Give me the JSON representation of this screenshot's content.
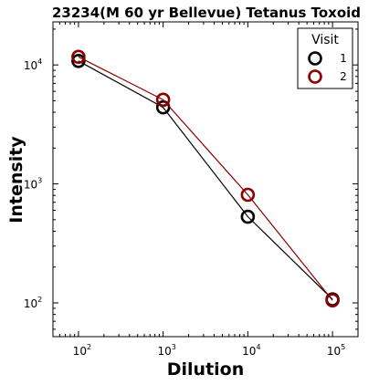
{
  "chart_data": {
    "type": "line",
    "title": "23234(M 60 yr Bellevue) Tetanus Toxoid",
    "xlabel": "Dilution",
    "ylabel": "Intensity",
    "xscale": "log",
    "yscale": "log",
    "xlim": [
      50,
      200000
    ],
    "ylim": [
      52,
      23000
    ],
    "x": [
      100,
      1000,
      10000,
      100000
    ],
    "x_ticks": [
      {
        "value": 100,
        "base": "10",
        "exp": "2"
      },
      {
        "value": 1000,
        "base": "10",
        "exp": "3"
      },
      {
        "value": 10000,
        "base": "10",
        "exp": "4"
      },
      {
        "value": 100000,
        "base": "10",
        "exp": "5"
      }
    ],
    "y_ticks": [
      {
        "value": 100,
        "base": "10",
        "exp": "2"
      },
      {
        "value": 1000,
        "base": "10",
        "exp": "3"
      },
      {
        "value": 10000,
        "base": "10",
        "exp": "4"
      }
    ],
    "legend": {
      "title": "Visit",
      "position": "top-right"
    },
    "grid": false,
    "series": [
      {
        "name": "1",
        "color": "#000000",
        "values": [
          10800,
          4400,
          530,
          107
        ],
        "marker": "open-circle"
      },
      {
        "name": "2",
        "color": "#8b0000",
        "values": [
          11700,
          5100,
          810,
          105
        ],
        "marker": "open-circle"
      }
    ]
  }
}
